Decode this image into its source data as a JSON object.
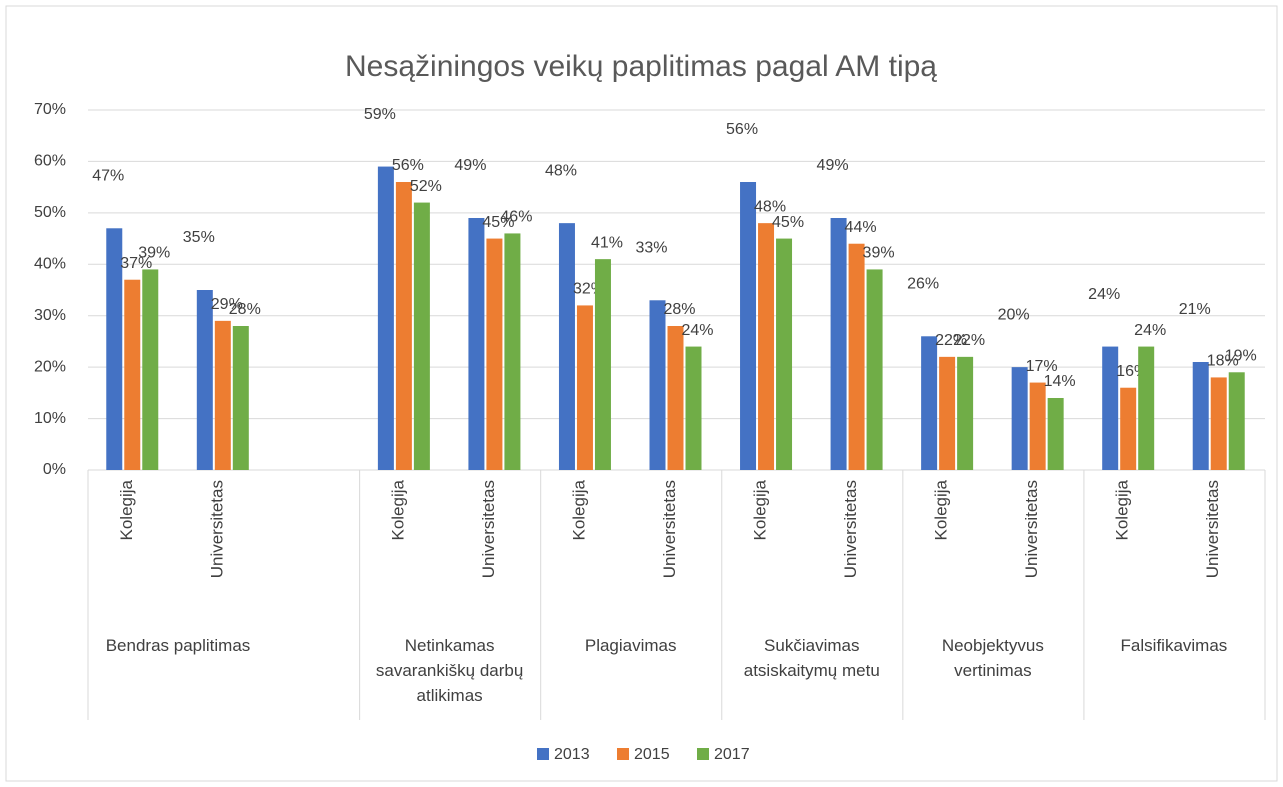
{
  "chart_data": {
    "type": "bar",
    "title": "Nesąžiningos veikų paplitimas pagal AM tipą",
    "groups": [
      {
        "name": "Bendras paplitimas",
        "categories": [
          "Kolegija",
          "Universitetas",
          null
        ]
      },
      {
        "name": "Netinkamas savarankiškų darbų atlikimas",
        "categories": [
          "Kolegija",
          "Universitetas"
        ]
      },
      {
        "name": "Plagiavimas",
        "categories": [
          "Kolegija",
          "Universitetas"
        ]
      },
      {
        "name": "Sukčiavimas atsiskaitymų metu",
        "categories": [
          "Kolegija",
          "Universitetas"
        ]
      },
      {
        "name": "Neobjektyvus vertinimas",
        "categories": [
          "Kolegija",
          "Universitetas"
        ]
      },
      {
        "name": "Falsifikavimas",
        "categories": [
          "Kolegija",
          "Universitetas"
        ]
      }
    ],
    "series": [
      {
        "name": "2013",
        "color": "#4472c4",
        "values": [
          47,
          35,
          null,
          59,
          49,
          48,
          33,
          56,
          49,
          26,
          20,
          24,
          21
        ],
        "value_labels": [
          "47%",
          "35%",
          null,
          "59%",
          "49%",
          "48%",
          "33%",
          "56%",
          "49%",
          "26%",
          "20%",
          "24%",
          "21%"
        ]
      },
      {
        "name": "2015",
        "color": "#ed7d31",
        "values": [
          37,
          29,
          null,
          56,
          45,
          32,
          28,
          48,
          44,
          22,
          17,
          16,
          18
        ],
        "value_labels": [
          "37%",
          "29%",
          null,
          "56%",
          "45%",
          "32%",
          "28%",
          "48%",
          "44%",
          "22%",
          "17%",
          "16%",
          "18%"
        ]
      },
      {
        "name": "2017",
        "color": "#70ad47",
        "values": [
          39,
          28,
          null,
          52,
          46,
          41,
          24,
          45,
          39,
          22,
          14,
          24,
          19
        ],
        "value_labels": [
          "39%",
          "28%",
          null,
          "52%",
          "46%",
          "41%",
          "24%",
          "45%",
          "39%",
          "22%",
          "14%",
          "24%",
          "19%"
        ]
      }
    ],
    "ylim": [
      0,
      70
    ],
    "yticks": [
      {
        "value": 0,
        "label": "0%"
      },
      {
        "value": 10,
        "label": "10%"
      },
      {
        "value": 20,
        "label": "20%"
      },
      {
        "value": 30,
        "label": "30%"
      },
      {
        "value": 40,
        "label": "40%"
      },
      {
        "value": 50,
        "label": "50%"
      },
      {
        "value": 60,
        "label": "60%"
      },
      {
        "value": 70,
        "label": "70%"
      }
    ],
    "grid": true,
    "legend": "bottom"
  }
}
